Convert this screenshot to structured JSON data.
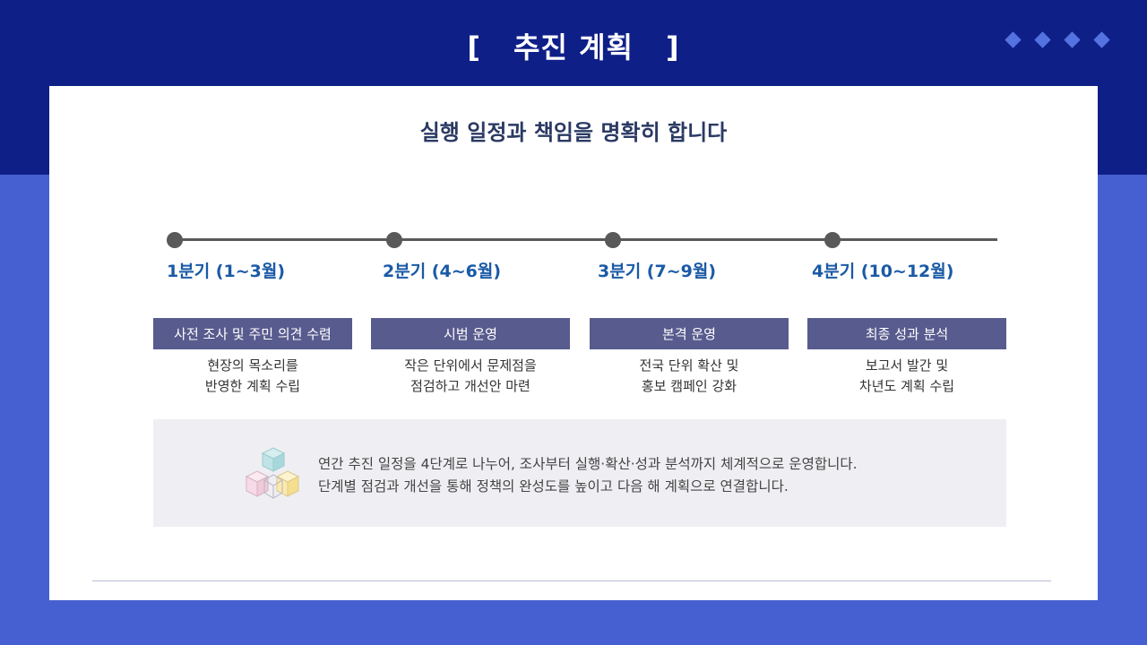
{
  "header": {
    "bracket_left": "[",
    "title": "추진 계획",
    "bracket_right": "]"
  },
  "subtitle": "실행 일정과 책임을 명확히 합니다",
  "phases": [
    {
      "quarter": "1분기 (1~3월)",
      "title": "사전 조사 및 주민 의견 수렴",
      "desc_line1": "현장의 목소리를",
      "desc_line2": "반영한 계획 수립"
    },
    {
      "quarter": "2분기 (4~6월)",
      "title": "시범 운영",
      "desc_line1": "작은 단위에서 문제점을",
      "desc_line2": "점검하고 개선안 마련"
    },
    {
      "quarter": "3분기 (7~9월)",
      "title": "본격 운영",
      "desc_line1": "전국 단위 확산 및",
      "desc_line2": "홍보 캠페인 강화"
    },
    {
      "quarter": "4분기 (10~12월)",
      "title": "최종 성과 분석",
      "desc_line1": "보고서 발간 및",
      "desc_line2": "차년도 계획 수립"
    }
  ],
  "summary": {
    "line1": "연간 추진 일정을 4단계로 나누어, 조사부터 실행·확산·성과 분석까지 체계적으로 운영합니다.",
    "line2": "단계별 점검과 개선을 통해 정책의 완성도를 높이고 다음 해 계획으로 연결합니다.",
    "icon": "cubes-icon"
  },
  "colors": {
    "header_band": "#0e1f87",
    "background": "#4660d1",
    "phase_box": "#585b8e",
    "quarter_text": "#1a5aa6",
    "summary_bg": "#efeef2"
  }
}
